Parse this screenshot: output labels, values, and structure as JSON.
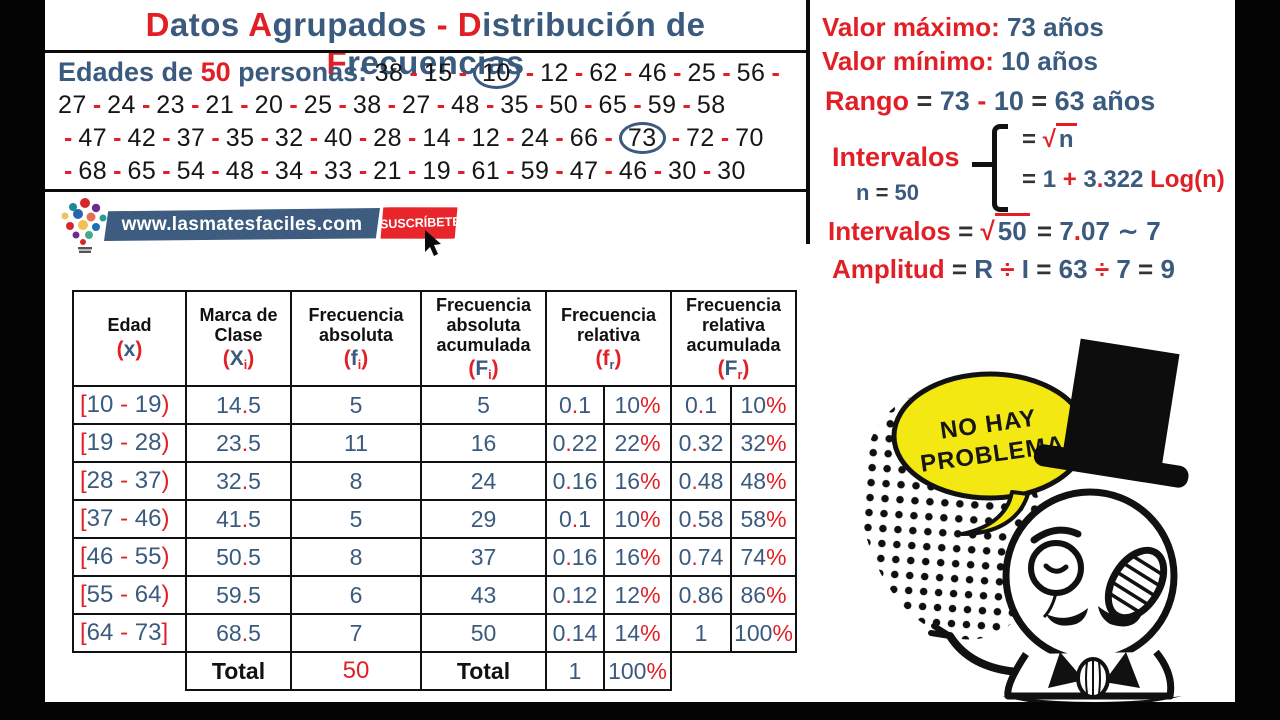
{
  "colors": {
    "red": "#e02026",
    "blue": "#3a5a7e",
    "dark": "#333333",
    "banner_blue": "#3d5c80",
    "button_red": "#e8252a",
    "bubble_yellow": "#f3e812"
  },
  "title": [
    {
      "t": "D",
      "c": "red"
    },
    {
      "t": "atos ",
      "c": "blue"
    },
    {
      "t": "A",
      "c": "red"
    },
    {
      "t": "grupados ",
      "c": "blue"
    },
    {
      "t": "- ",
      "c": "red"
    },
    {
      "t": "D",
      "c": "red"
    },
    {
      "t": "istribución de ",
      "c": "blue"
    },
    {
      "t": "F",
      "c": "red"
    },
    {
      "t": "recuencias",
      "c": "blue"
    }
  ],
  "dataset": {
    "lines": [
      {
        "label": [
          {
            "t": "Edades de ",
            "c": "blue"
          },
          {
            "t": "50",
            "c": "red"
          },
          {
            "t": " personas: ",
            "c": "blue"
          }
        ],
        "numbers": [
          {
            "v": "38"
          },
          {
            "v": "15"
          },
          {
            "v": "10",
            "circled": true
          },
          {
            "v": "12"
          },
          {
            "v": "62"
          },
          {
            "v": "46"
          },
          {
            "v": "25"
          },
          {
            "v": "56"
          }
        ],
        "trailing_dash": true
      },
      {
        "numbers": [
          {
            "v": "27"
          },
          {
            "v": "24"
          },
          {
            "v": "23"
          },
          {
            "v": "21"
          },
          {
            "v": "20"
          },
          {
            "v": "25"
          },
          {
            "v": "38"
          },
          {
            "v": "27"
          },
          {
            "v": "48"
          },
          {
            "v": "35"
          },
          {
            "v": "50"
          },
          {
            "v": "65"
          },
          {
            "v": "59"
          },
          {
            "v": "58"
          }
        ]
      },
      {
        "leading_dash": true,
        "numbers": [
          {
            "v": "47"
          },
          {
            "v": "42"
          },
          {
            "v": "37"
          },
          {
            "v": "35"
          },
          {
            "v": "32"
          },
          {
            "v": "40"
          },
          {
            "v": "28"
          },
          {
            "v": "14"
          },
          {
            "v": "12"
          },
          {
            "v": "24"
          },
          {
            "v": "66"
          },
          {
            "v": "73",
            "circled": true
          },
          {
            "v": "72"
          },
          {
            "v": "70"
          }
        ]
      },
      {
        "leading_dash": true,
        "numbers": [
          {
            "v": "68"
          },
          {
            "v": "65"
          },
          {
            "v": "54"
          },
          {
            "v": "48"
          },
          {
            "v": "34"
          },
          {
            "v": "33"
          },
          {
            "v": "21"
          },
          {
            "v": "19"
          },
          {
            "v": "61"
          },
          {
            "v": "59"
          },
          {
            "v": "47"
          },
          {
            "v": "46"
          },
          {
            "v": "30"
          },
          {
            "v": "30"
          }
        ]
      }
    ]
  },
  "banner": {
    "site": "www.lasmatesfaciles.com",
    "button": "SUSCRÍBETE"
  },
  "panel": {
    "valor_maximo": [
      {
        "t": "Valor máximo: ",
        "c": "red"
      },
      {
        "t": "73 años",
        "c": "blue"
      }
    ],
    "valor_minimo": [
      {
        "t": "Valor mínimo: ",
        "c": "red"
      },
      {
        "t": "10 años",
        "c": "blue"
      }
    ],
    "rango": [
      {
        "t": "Rango ",
        "c": "red"
      },
      {
        "t": "= ",
        "c": "dark"
      },
      {
        "t": " 73 ",
        "c": "blue"
      },
      {
        "t": "- ",
        "c": "red"
      },
      {
        "t": " 10 ",
        "c": "blue"
      },
      {
        "t": " = ",
        "c": "dark"
      },
      {
        "t": " 63 años",
        "c": "blue"
      }
    ],
    "intervalos_label": [
      {
        "t": "Intervalos",
        "c": "red"
      }
    ],
    "n_line": [
      {
        "t": "n ",
        "c": "blue"
      },
      {
        "t": "= ",
        "c": "dark"
      },
      {
        "t": " 50",
        "c": "blue"
      }
    ],
    "formula_sqrt": [
      {
        "t": "= ",
        "c": "dark"
      },
      {
        "t": "√",
        "c": "red"
      },
      {
        "t": "n",
        "c": "blue",
        "over": true
      }
    ],
    "formula_sturges": [
      {
        "t": "= ",
        "c": "dark"
      },
      {
        "t": "1 ",
        "c": "blue"
      },
      {
        "t": "+ ",
        "c": "red"
      },
      {
        "t": "3",
        "c": "blue"
      },
      {
        "t": ".",
        "c": "red"
      },
      {
        "t": "322 ",
        "c": "blue"
      },
      {
        "t": "Log(n)",
        "c": "red"
      }
    ],
    "intervalos_calc": [
      {
        "t": "Intervalos ",
        "c": "red"
      },
      {
        "t": "= ",
        "c": "dark"
      },
      {
        "t": "√",
        "c": "red"
      },
      {
        "t": "50",
        "c": "blue",
        "over": true
      },
      {
        "t": " = ",
        "c": "dark"
      },
      {
        "t": " 7",
        "c": "blue"
      },
      {
        "t": ".",
        "c": "red"
      },
      {
        "t": "07 ",
        "c": "blue"
      },
      {
        "t": "∼ ",
        "c": "blue"
      },
      {
        "t": "7",
        "c": "blue"
      }
    ],
    "amplitud": [
      {
        "t": "Amplitud ",
        "c": "red"
      },
      {
        "t": " = ",
        "c": "dark"
      },
      {
        "t": " R ",
        "c": "blue"
      },
      {
        "t": "÷",
        "c": "red"
      },
      {
        "t": " I ",
        "c": "blue"
      },
      {
        "t": "= ",
        "c": "dark"
      },
      {
        "t": " 63 ",
        "c": "blue"
      },
      {
        "t": "÷",
        "c": "red"
      },
      {
        "t": " 7 ",
        "c": "blue"
      },
      {
        "t": "= ",
        "c": "dark"
      },
      {
        "t": " 9",
        "c": "blue"
      }
    ]
  },
  "table": {
    "headers": [
      {
        "title": "Edad",
        "open": "(",
        "main": "x",
        "main_color": "blue",
        "sub": "",
        "sub_color": "",
        "close": ")",
        "colspan": 1
      },
      {
        "title": "Marca de Clase",
        "open": "(",
        "main": "X",
        "main_color": "blue",
        "sub": "i",
        "sub_color": "red",
        "close": ")",
        "colspan": 1
      },
      {
        "title": "Frecuencia absoluta",
        "open": "(",
        "main": "f",
        "main_color": "blue",
        "sub": "i",
        "sub_color": "red",
        "close": ")",
        "colspan": 1
      },
      {
        "title": "Frecuencia absoluta acumulada",
        "open": "(",
        "main": "F",
        "main_color": "blue",
        "sub": "i",
        "sub_color": "red",
        "close": ")",
        "colspan": 1
      },
      {
        "title": "Frecuencia relativa",
        "open": "(",
        "main": "f",
        "main_color": "red",
        "sub": "r",
        "sub_color": "blue",
        "close": ")",
        "colspan": 2
      },
      {
        "title": "Frecuencia relativa acumulada",
        "open": "(",
        "main": "F",
        "main_color": "blue",
        "sub": "r",
        "sub_color": "red",
        "close": ")",
        "colspan": 2
      }
    ],
    "rows": [
      [
        "[10 - 19)",
        "14.5",
        "5",
        "5",
        "0.1",
        "10%",
        "0.1",
        "10%"
      ],
      [
        "[19 - 28)",
        "23.5",
        "11",
        "16",
        "0.22",
        "22%",
        "0.32",
        "32%"
      ],
      [
        "[28 - 37)",
        "32.5",
        "8",
        "24",
        "0.16",
        "16%",
        "0.48",
        "48%"
      ],
      [
        "[37 - 46)",
        "41.5",
        "5",
        "29",
        "0.1",
        "10%",
        "0.58",
        "58%"
      ],
      [
        "[46 - 55)",
        "50.5",
        "8",
        "37",
        "0.16",
        "16%",
        "0.74",
        "74%"
      ],
      [
        "[55 - 64)",
        "59.5",
        "6",
        "43",
        "0.12",
        "12%",
        "0.86",
        "86%"
      ],
      [
        "[64 - 73]",
        "68.5",
        "7",
        "50",
        "0.14",
        "14%",
        "1",
        "100%"
      ]
    ],
    "total": {
      "label_xi": "Total",
      "fi": "50",
      "label_Fi": "Total",
      "fr": "1",
      "fr_pct": "100%"
    }
  },
  "meme": {
    "bubble_line1": "NO HAY",
    "bubble_line2": "PROBLEMA"
  }
}
